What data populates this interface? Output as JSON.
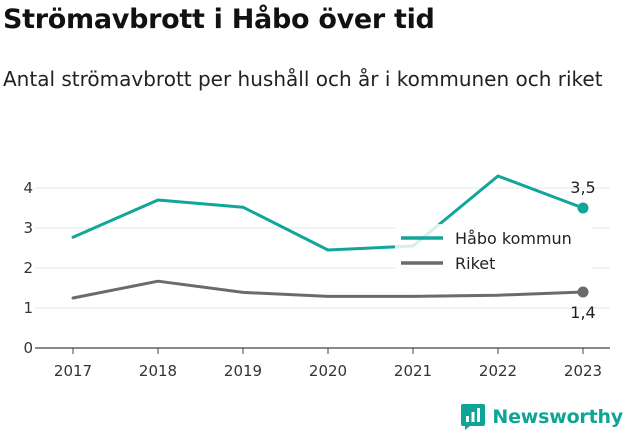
{
  "title": "Strömavbrott i Håbo över tid",
  "subtitle": "Antal strömavbrott per hushåll och år i kommunen och riket",
  "brand": {
    "name": "Newsworthy"
  },
  "colors": {
    "habo": "#12a59a",
    "riket": "#6b6b6e",
    "grid": "#e6e6e6",
    "axis": "#444444"
  },
  "chart_data": {
    "type": "line",
    "x": [
      "2017",
      "2018",
      "2019",
      "2020",
      "2021",
      "2022",
      "2023"
    ],
    "ylim": [
      0,
      4.5
    ],
    "yticks": [
      0,
      1,
      2,
      3,
      4
    ],
    "grid": true,
    "legend_position": "right",
    "series": [
      {
        "name": "Håbo kommun",
        "values": [
          2.77,
          3.7,
          3.52,
          2.45,
          2.55,
          4.3,
          3.5
        ],
        "end_label": "3,5"
      },
      {
        "name": "Riket",
        "values": [
          1.25,
          1.67,
          1.39,
          1.29,
          1.29,
          1.32,
          1.4
        ],
        "end_label": "1,4"
      }
    ]
  }
}
